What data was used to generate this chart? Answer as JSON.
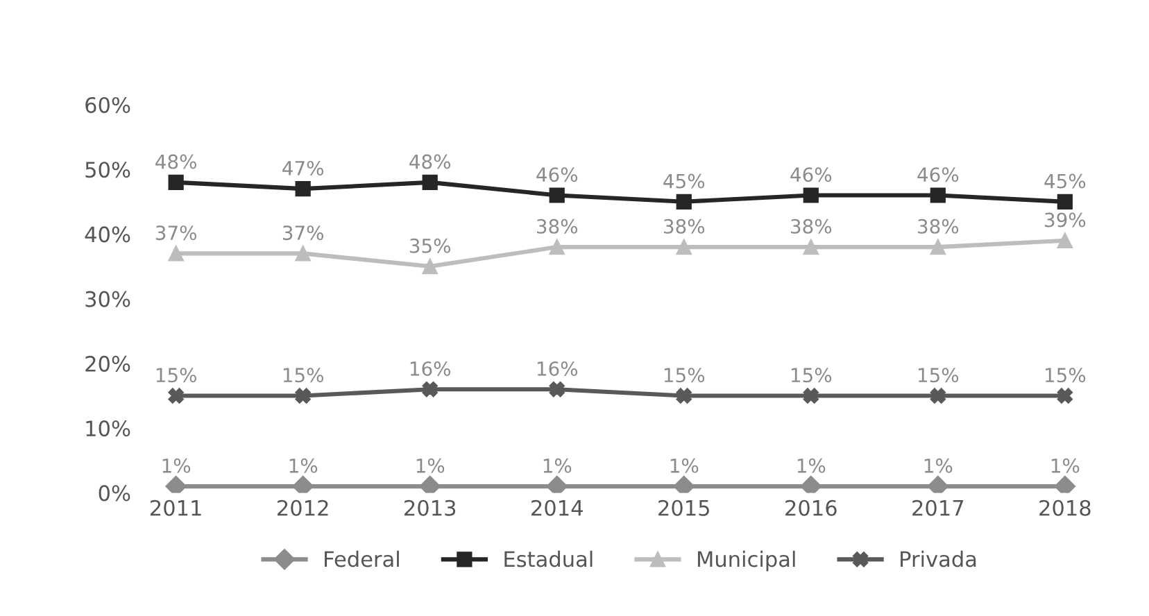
{
  "chart_data": {
    "type": "line",
    "categories": [
      "2011",
      "2012",
      "2013",
      "2014",
      "2015",
      "2016",
      "2017",
      "2018"
    ],
    "series": [
      {
        "name": "Federal",
        "color": "#8c8c8c",
        "marker": "diamond",
        "values": [
          1,
          1,
          1,
          1,
          1,
          1,
          1,
          1
        ],
        "value_labels": [
          "1%",
          "1%",
          "1%",
          "1%",
          "1%",
          "1%",
          "1%",
          "1%"
        ]
      },
      {
        "name": "Estadual",
        "color": "#262626",
        "marker": "square",
        "values": [
          48,
          47,
          48,
          46,
          45,
          46,
          46,
          45
        ],
        "value_labels": [
          "48%",
          "47%",
          "48%",
          "46%",
          "45%",
          "46%",
          "46%",
          "45%"
        ]
      },
      {
        "name": "Municipal",
        "color": "#bdbdbd",
        "marker": "triangle",
        "values": [
          37,
          37,
          35,
          38,
          38,
          38,
          38,
          39
        ],
        "value_labels": [
          "37%",
          "37%",
          "35%",
          "38%",
          "38%",
          "38%",
          "38%",
          "39%"
        ]
      },
      {
        "name": "Privada",
        "color": "#595959",
        "marker": "cross",
        "values": [
          15,
          15,
          16,
          16,
          15,
          15,
          15,
          15
        ],
        "value_labels": [
          "15%",
          "15%",
          "16%",
          "16%",
          "15%",
          "15%",
          "15%",
          "15%"
        ]
      }
    ],
    "ylim": [
      0,
      60
    ],
    "yticks": [
      {
        "value": 0,
        "label": "0%"
      },
      {
        "value": 10,
        "label": "10%"
      },
      {
        "value": 20,
        "label": "20%"
      },
      {
        "value": 30,
        "label": "30%"
      },
      {
        "value": 40,
        "label": "40%"
      },
      {
        "value": 50,
        "label": "50%"
      },
      {
        "value": 60,
        "label": "60%"
      }
    ],
    "grid": false,
    "legend": "bottom",
    "line_style": "solid"
  }
}
